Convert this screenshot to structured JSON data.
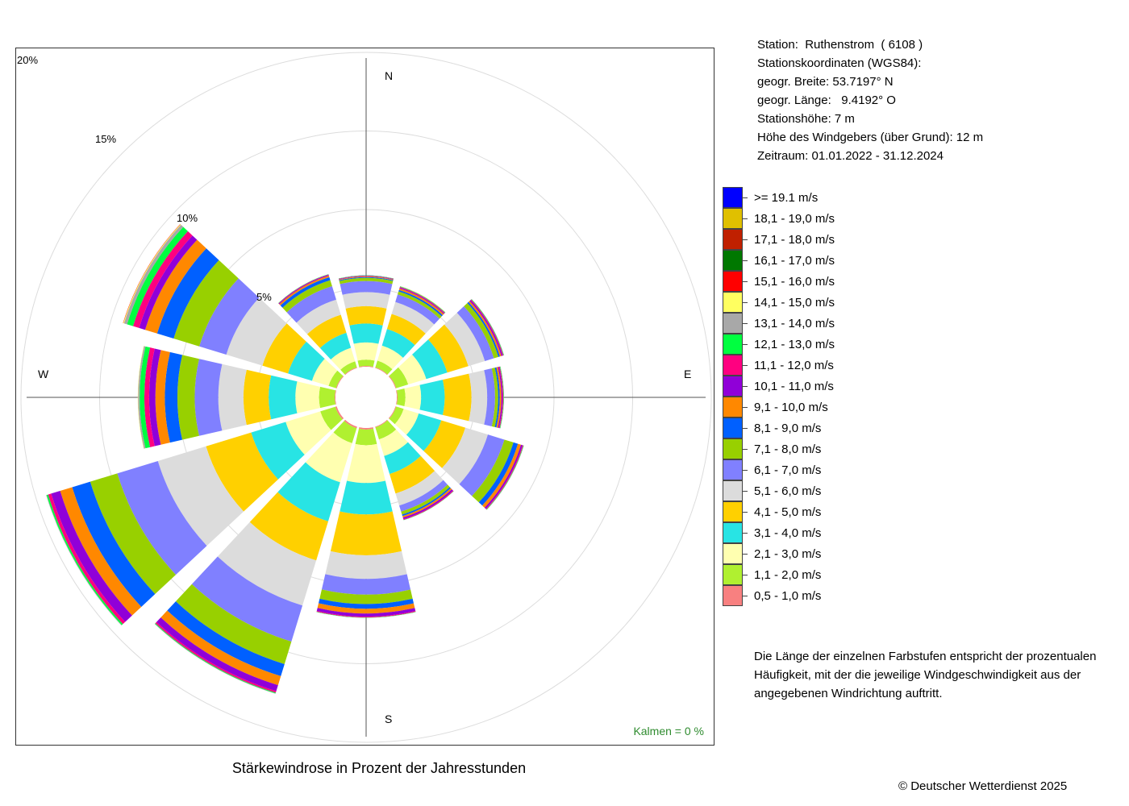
{
  "station": {
    "name_line": "Station:  Ruthenstrom  ( 6108 )",
    "coords_heading": "Stationskoordinaten (WGS84):",
    "lat_line": "geogr. Breite: 53.7197° N",
    "lon_line": "geogr. Länge:   9.4192° O",
    "elevation_line": "Stationshöhe: 7 m",
    "sensor_height_line": "Höhe des Windgebers (über Grund): 12 m",
    "period_line": "Zeitraum: 01.01.2022 - 31.12.2024"
  },
  "compass": {
    "n": "N",
    "e": "E",
    "s": "S",
    "w": "W"
  },
  "calm_label": "Kalmen  =  0 %",
  "legend_note": "Die Länge der einzelnen Farbstufen entspricht der prozentualen Häufigkeit, mit der die jeweilige Windgeschwindigkeit aus der angegebenen Windrichtung auftritt.",
  "copyright": "© Deutscher Wetterdienst  2025",
  "chart_data": {
    "type": "windrose",
    "title": "Stärkewindrose in Prozent der Jahresstunden",
    "rings": [
      5,
      10,
      15,
      20
    ],
    "ring_labels": [
      "5%",
      "10%",
      "15%",
      "20%"
    ],
    "directions": [
      0,
      30,
      60,
      90,
      120,
      150,
      180,
      210,
      240,
      270,
      300,
      330
    ],
    "speed_classes": [
      {
        "label": "0,5 - 1,0 m/s",
        "color": "#f88080"
      },
      {
        "label": "1,1 - 2,0 m/s",
        "color": "#b0f030"
      },
      {
        "label": "2,1 - 3,0 m/s",
        "color": "#ffffb0"
      },
      {
        "label": "3,1 - 4,0 m/s",
        "color": "#28e4e4"
      },
      {
        "label": "4,1 - 5,0 m/s",
        "color": "#ffd000"
      },
      {
        "label": "5,1 - 6,0 m/s",
        "color": "#dcdcdc"
      },
      {
        "label": "6,1 - 7,0 m/s",
        "color": "#8080ff"
      },
      {
        "label": "7,1 - 8,0 m/s",
        "color": "#98d000"
      },
      {
        "label": "8,1 - 9,0 m/s",
        "color": "#0060ff"
      },
      {
        "label": "9,1 - 10,0 m/s",
        "color": "#ff8800"
      },
      {
        "label": "10,1 - 11,0 m/s",
        "color": "#9000d8"
      },
      {
        "label": "11,1 - 12,0 m/s",
        "color": "#ff0080"
      },
      {
        "label": "12,1 - 13,0 m/s",
        "color": "#00ff40"
      },
      {
        "label": "13,1 - 14,0 m/s",
        "color": "#a8a8a8"
      },
      {
        "label": "14,1 - 15,0 m/s",
        "color": "#ffff60"
      },
      {
        "label": "15,1 - 16,0 m/s",
        "color": "#ff0000"
      },
      {
        "label": "16,1 - 17,0 m/s",
        "color": "#007800"
      },
      {
        "label": "17,1 - 18,0 m/s",
        "color": "#c02000"
      },
      {
        "label": "18,1 - 19,0 m/s",
        "color": "#e0c000"
      },
      {
        "label": ">= 19.1 m/s",
        "color": "#0000ff"
      }
    ],
    "series": [
      {
        "direction": 0,
        "values": [
          0.05,
          0.4,
          1.1,
          1.2,
          1.1,
          0.9,
          0.7,
          0.2,
          0.05,
          0.05,
          0.03,
          0.02,
          0.02,
          0,
          0,
          0,
          0,
          0,
          0,
          0
        ]
      },
      {
        "direction": 30,
        "values": [
          0.05,
          0.45,
          1.0,
          1.1,
          1.0,
          0.8,
          0.5,
          0.2,
          0.1,
          0.1,
          0.05,
          0.05,
          0.03,
          0.02,
          0.01,
          0,
          0,
          0,
          0,
          0
        ]
      },
      {
        "direction": 60,
        "values": [
          0.05,
          0.8,
          1.2,
          1.4,
          1.4,
          1.1,
          0.6,
          0.3,
          0.1,
          0.1,
          0.08,
          0.05,
          0.03,
          0.02,
          0,
          0,
          0,
          0,
          0,
          0
        ]
      },
      {
        "direction": 90,
        "values": [
          0.05,
          0.5,
          1.0,
          1.5,
          1.7,
          1.0,
          0.5,
          0.2,
          0.1,
          0.1,
          0.07,
          0.05,
          0.03,
          0.02,
          0,
          0,
          0,
          0,
          0,
          0
        ]
      },
      {
        "direction": 120,
        "values": [
          0.05,
          0.5,
          1.0,
          1.5,
          1.6,
          1.5,
          1.1,
          0.6,
          0.3,
          0.2,
          0.1,
          0.05,
          0.03,
          0.02,
          0,
          0,
          0,
          0,
          0,
          0
        ]
      },
      {
        "direction": 150,
        "values": [
          0.05,
          0.8,
          1.1,
          1.2,
          1.3,
          0.8,
          0.4,
          0.2,
          0.1,
          0.1,
          0.1,
          0.05,
          0.02,
          0,
          0,
          0,
          0,
          0,
          0,
          0
        ]
      },
      {
        "direction": 180,
        "values": [
          0.1,
          1.0,
          2.4,
          2.0,
          2.6,
          1.5,
          1.0,
          0.6,
          0.3,
          0.3,
          0.2,
          0.05,
          0.02,
          0,
          0,
          0,
          0,
          0,
          0,
          0
        ]
      },
      {
        "direction": 210,
        "values": [
          0.1,
          1.0,
          2.6,
          2.6,
          2.6,
          3.0,
          2.4,
          1.5,
          0.8,
          0.6,
          0.4,
          0.1,
          0.05,
          0.02,
          0,
          0,
          0,
          0,
          0,
          0
        ]
      },
      {
        "direction": 240,
        "values": [
          0.1,
          1.0,
          2.3,
          2.3,
          3.0,
          3.2,
          2.7,
          1.8,
          1.2,
          0.8,
          0.6,
          0.2,
          0.1,
          0.03,
          0,
          0,
          0,
          0,
          0,
          0
        ]
      },
      {
        "direction": 270,
        "values": [
          0.05,
          1.0,
          1.5,
          1.7,
          1.6,
          1.6,
          1.5,
          1.1,
          0.8,
          0.6,
          0.4,
          0.3,
          0.3,
          0.1,
          0.02,
          0,
          0,
          0,
          0,
          0
        ]
      },
      {
        "direction": 300,
        "values": [
          0.05,
          0.5,
          1.1,
          1.6,
          1.7,
          2.4,
          1.8,
          1.7,
          1.1,
          0.8,
          0.4,
          0.4,
          0.4,
          0.2,
          0.05,
          0.02,
          0,
          0,
          0,
          0
        ]
      },
      {
        "direction": 330,
        "values": [
          0.05,
          0.4,
          0.9,
          1.0,
          1.2,
          1.0,
          0.9,
          0.4,
          0.2,
          0.1,
          0.05,
          0.03,
          0.02,
          0,
          0,
          0,
          0,
          0,
          0,
          0
        ]
      }
    ],
    "calm_percent": 0
  }
}
